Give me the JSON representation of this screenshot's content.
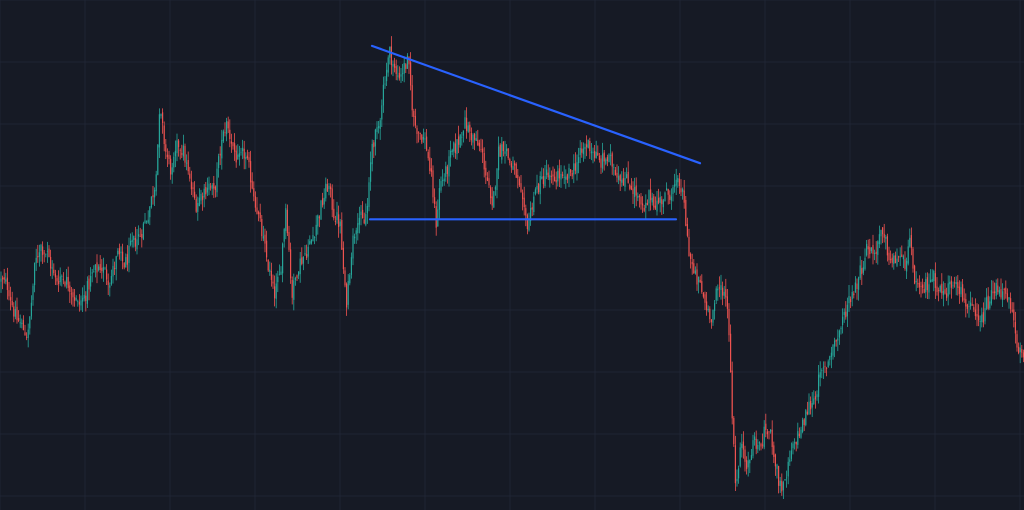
{
  "chart_data": {
    "type": "candlestick",
    "title": "",
    "xlabel": "",
    "ylabel": "",
    "axes_visible": false,
    "grid": true,
    "background": "#161a25",
    "colors": {
      "up": "#26a69a",
      "down": "#ef5350",
      "grid": "#1f2433",
      "trendline": "#2962ff"
    },
    "ylim": [
      0,
      100
    ],
    "price_path": [
      [
        0,
        45
      ],
      [
        8,
        44
      ],
      [
        15,
        38
      ],
      [
        22,
        36
      ],
      [
        28,
        34
      ],
      [
        35,
        48
      ],
      [
        40,
        52
      ],
      [
        48,
        50
      ],
      [
        55,
        45
      ],
      [
        62,
        46
      ],
      [
        70,
        44
      ],
      [
        78,
        40
      ],
      [
        85,
        42
      ],
      [
        92,
        46
      ],
      [
        100,
        48
      ],
      [
        110,
        45
      ],
      [
        118,
        50
      ],
      [
        125,
        48
      ],
      [
        132,
        52
      ],
      [
        140,
        54
      ],
      [
        148,
        58
      ],
      [
        155,
        64
      ],
      [
        160,
        78
      ],
      [
        166,
        70
      ],
      [
        172,
        66
      ],
      [
        178,
        72
      ],
      [
        184,
        70
      ],
      [
        190,
        64
      ],
      [
        196,
        60
      ],
      [
        202,
        62
      ],
      [
        208,
        64
      ],
      [
        214,
        62
      ],
      [
        220,
        70
      ],
      [
        226,
        76
      ],
      [
        232,
        72
      ],
      [
        238,
        68
      ],
      [
        244,
        70
      ],
      [
        250,
        66
      ],
      [
        256,
        60
      ],
      [
        262,
        54
      ],
      [
        268,
        48
      ],
      [
        274,
        42
      ],
      [
        280,
        46
      ],
      [
        286,
        60
      ],
      [
        292,
        42
      ],
      [
        298,
        48
      ],
      [
        304,
        50
      ],
      [
        310,
        52
      ],
      [
        316,
        56
      ],
      [
        322,
        60
      ],
      [
        328,
        64
      ],
      [
        334,
        58
      ],
      [
        340,
        56
      ],
      [
        346,
        40
      ],
      [
        352,
        52
      ],
      [
        358,
        58
      ],
      [
        364,
        56
      ],
      [
        368,
        60
      ],
      [
        372,
        72
      ],
      [
        378,
        74
      ],
      [
        384,
        84
      ],
      [
        390,
        90
      ],
      [
        396,
        85
      ],
      [
        402,
        86
      ],
      [
        408,
        88
      ],
      [
        414,
        76
      ],
      [
        420,
        74
      ],
      [
        426,
        72
      ],
      [
        432,
        64
      ],
      [
        436,
        56
      ],
      [
        440,
        64
      ],
      [
        446,
        66
      ],
      [
        452,
        70
      ],
      [
        458,
        72
      ],
      [
        464,
        76
      ],
      [
        470,
        74
      ],
      [
        476,
        72
      ],
      [
        482,
        70
      ],
      [
        488,
        64
      ],
      [
        492,
        58
      ],
      [
        498,
        70
      ],
      [
        504,
        72
      ],
      [
        510,
        68
      ],
      [
        516,
        66
      ],
      [
        520,
        62
      ],
      [
        524,
        58
      ],
      [
        528,
        56
      ],
      [
        534,
        62
      ],
      [
        540,
        64
      ],
      [
        546,
        66
      ],
      [
        552,
        64
      ],
      [
        558,
        66
      ],
      [
        564,
        64
      ],
      [
        570,
        66
      ],
      [
        576,
        68
      ],
      [
        582,
        70
      ],
      [
        588,
        72
      ],
      [
        594,
        70
      ],
      [
        600,
        68
      ],
      [
        606,
        69
      ],
      [
        612,
        68
      ],
      [
        618,
        66
      ],
      [
        624,
        65
      ],
      [
        630,
        64
      ],
      [
        636,
        62
      ],
      [
        640,
        60
      ],
      [
        644,
        58
      ],
      [
        650,
        62
      ],
      [
        656,
        60
      ],
      [
        662,
        61
      ],
      [
        668,
        62
      ],
      [
        674,
        63
      ],
      [
        680,
        64
      ],
      [
        684,
        60
      ],
      [
        688,
        52
      ],
      [
        694,
        46
      ],
      [
        700,
        44
      ],
      [
        706,
        40
      ],
      [
        712,
        38
      ],
      [
        716,
        42
      ],
      [
        722,
        44
      ],
      [
        728,
        40
      ],
      [
        732,
        20
      ],
      [
        736,
        4
      ],
      [
        742,
        14
      ],
      [
        748,
        8
      ],
      [
        754,
        14
      ],
      [
        760,
        12
      ],
      [
        766,
        16
      ],
      [
        772,
        14
      ],
      [
        778,
        6
      ],
      [
        784,
        4
      ],
      [
        790,
        10
      ],
      [
        796,
        14
      ],
      [
        802,
        16
      ],
      [
        808,
        20
      ],
      [
        814,
        22
      ],
      [
        820,
        26
      ],
      [
        826,
        28
      ],
      [
        832,
        32
      ],
      [
        838,
        34
      ],
      [
        844,
        38
      ],
      [
        850,
        42
      ],
      [
        856,
        44
      ],
      [
        862,
        48
      ],
      [
        868,
        52
      ],
      [
        874,
        50
      ],
      [
        880,
        54
      ],
      [
        886,
        52
      ],
      [
        892,
        48
      ],
      [
        898,
        50
      ],
      [
        904,
        48
      ],
      [
        910,
        52
      ],
      [
        914,
        46
      ],
      [
        920,
        42
      ],
      [
        926,
        44
      ],
      [
        932,
        46
      ],
      [
        938,
        44
      ],
      [
        944,
        42
      ],
      [
        950,
        44
      ],
      [
        956,
        46
      ],
      [
        962,
        42
      ],
      [
        968,
        40
      ],
      [
        974,
        38
      ],
      [
        980,
        36
      ],
      [
        986,
        40
      ],
      [
        992,
        42
      ],
      [
        998,
        44
      ],
      [
        1004,
        42
      ],
      [
        1010,
        40
      ],
      [
        1016,
        34
      ],
      [
        1024,
        28
      ]
    ],
    "annotations": [
      {
        "type": "trendline",
        "name": "descending-resistance-line",
        "x1": 372,
        "y1": 91,
        "x2": 700,
        "y2": 68
      },
      {
        "type": "trendline",
        "name": "horizontal-support-line",
        "x1": 370,
        "y1": 57,
        "x2": 676,
        "y2": 57
      }
    ]
  }
}
